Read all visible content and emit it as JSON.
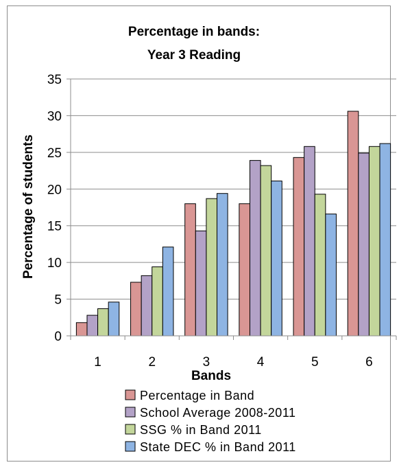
{
  "chart_data": {
    "type": "bar",
    "title_lines": [
      "Percentage in bands:",
      "Year 3 Reading"
    ],
    "xlabel": "Bands",
    "ylabel": "Percentage of students",
    "ylim": [
      0,
      35
    ],
    "yticks": [
      0,
      5,
      10,
      15,
      20,
      25,
      30,
      35
    ],
    "grid": true,
    "legend_position": "bottom",
    "categories": [
      "1",
      "2",
      "3",
      "4",
      "5",
      "6"
    ],
    "series": [
      {
        "name": "Percentage in Band",
        "color": "#D99694",
        "values": [
          1.8,
          7.3,
          18.0,
          18.0,
          24.3,
          30.6
        ]
      },
      {
        "name": "School Average 2008-2011",
        "color": "#B3A2C7",
        "values": [
          2.8,
          8.2,
          14.3,
          23.9,
          25.8,
          24.9
        ]
      },
      {
        "name": "SSG % in Band 2011",
        "color": "#C3D69B",
        "values": [
          3.7,
          9.4,
          18.7,
          23.2,
          19.3,
          25.8
        ]
      },
      {
        "name": "State DEC % in Band 2011",
        "color": "#8EB4E3",
        "values": [
          4.6,
          12.1,
          19.4,
          21.1,
          16.6,
          26.2
        ]
      }
    ]
  }
}
